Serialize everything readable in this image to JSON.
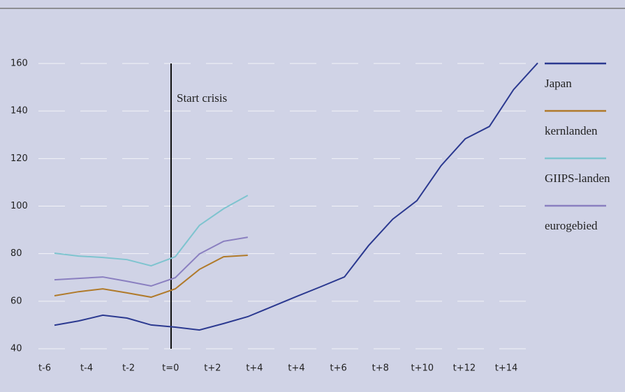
{
  "chart_data": {
    "type": "line",
    "xticklabels": [
      "t-6",
      "t-4",
      "t-2",
      "t=0",
      "t+2",
      "t+4",
      "t+4",
      "t+6",
      "t+8",
      "t+10",
      "t+12",
      "t+14"
    ],
    "ylim": [
      40,
      160
    ],
    "yticks": [
      40,
      60,
      80,
      100,
      120,
      140,
      160
    ],
    "grid": true,
    "annotation": {
      "x": 5,
      "label": "Start crisis"
    },
    "series": [
      {
        "name": "Japan",
        "color": "#2b3990",
        "values": [
          49.9,
          51.7,
          54.1,
          52.9,
          50.0,
          49.1,
          47.9,
          50.6,
          53.5,
          57.7,
          61.9,
          66.0,
          70.2,
          83.4,
          94.5,
          102.3,
          117,
          128.3,
          133.5,
          149,
          160.2
        ]
      },
      {
        "name": "kernlanden",
        "color": "#b07a2a",
        "values": [
          62.3,
          64,
          65.2,
          63.5,
          61.7,
          65.2,
          73.4,
          78.7,
          79.3
        ]
      },
      {
        "name": "GIIPS-landen",
        "color": "#7ec4cf",
        "values": [
          80.2,
          79,
          78.4,
          77.5,
          74.9,
          78.7,
          91.9,
          98.9,
          104.5
        ]
      },
      {
        "name": "eurogebied",
        "color": "#8a7fc0",
        "values": [
          69,
          69.6,
          70.2,
          68.4,
          66.4,
          69.9,
          79.9,
          85.2,
          86.9
        ]
      }
    ]
  }
}
